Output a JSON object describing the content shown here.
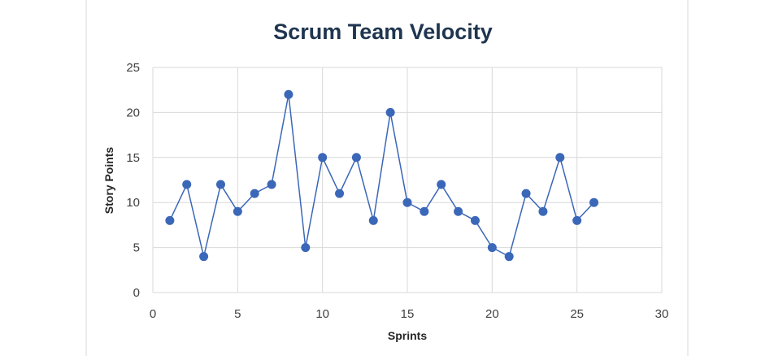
{
  "chart_data": {
    "type": "scatter",
    "title": "Scrum Team Velocity",
    "xlabel": "Sprints",
    "ylabel": "Story Points",
    "xlim": [
      0,
      30
    ],
    "ylim": [
      0,
      25
    ],
    "xticks": [
      0,
      5,
      10,
      15,
      20,
      25,
      30
    ],
    "yticks": [
      0,
      5,
      10,
      15,
      20,
      25
    ],
    "grid": true,
    "legend": "none",
    "colors": {
      "series": "#3b67b8",
      "grid": "#d9d9d9",
      "title": "#1f3550"
    },
    "series": [
      {
        "x": [
          1,
          2,
          3,
          4,
          5,
          6,
          7,
          8,
          9,
          10,
          11,
          12,
          13,
          14,
          15,
          16,
          17,
          18,
          19,
          20,
          21,
          22,
          23,
          24,
          25,
          26
        ],
        "y": [
          8,
          12,
          4,
          12,
          9,
          11,
          12,
          22,
          5,
          15,
          11,
          15,
          8,
          20,
          10,
          9,
          12,
          9,
          8,
          5,
          4,
          11,
          9,
          15,
          8,
          10
        ]
      }
    ]
  }
}
